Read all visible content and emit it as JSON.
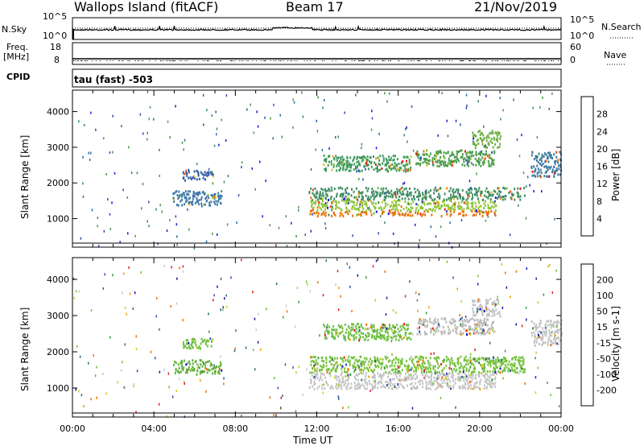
{
  "header": {
    "title": "Wallops Island (fitACF)",
    "beam": "Beam 17",
    "date": "21/Nov/2019"
  },
  "sky_panel": {
    "left_label": "N.Sky",
    "right_label": "N.Search",
    "left_ticks": [
      "10^5",
      "10^0"
    ],
    "right_ticks": [
      "10^5",
      "10^0"
    ]
  },
  "freq_panel": {
    "left_label_line1": "Freq.",
    "left_label_line2": "[MHz]",
    "right_label": "Nave",
    "left_ticks": [
      "18",
      "8"
    ],
    "right_ticks": [
      "60",
      "0"
    ]
  },
  "cpid_panel": {
    "label": "CPID",
    "text": "tau (fast) -503"
  },
  "chart_data": [
    {
      "type": "heatmap",
      "name_text": "power",
      "xlabel": "",
      "ylabel": "Slant Range [km]",
      "yticks": [
        1000,
        2000,
        3000,
        4000
      ],
      "ylim": [
        200,
        4600
      ],
      "xlim": [
        0,
        24
      ],
      "colorbar": {
        "label": "Power [dB]",
        "ticks": [
          4,
          8,
          12,
          16,
          20,
          24,
          28
        ],
        "range": [
          0,
          32
        ],
        "colors": [
          "#1a1adc",
          "#2e4fb0",
          "#2f6e9e",
          "#3c8a6e",
          "#4e9a48",
          "#6fbf3a",
          "#c8cc20",
          "#f0b000",
          "#f08a00",
          "#f06a00",
          "#ea4a00",
          "#e81818"
        ]
      },
      "regions": [
        {
          "t0": 4.9,
          "t1": 7.3,
          "r0": 1400,
          "r1": 1800,
          "color": "#3f79a8"
        },
        {
          "t0": 5.4,
          "t1": 6.9,
          "r0": 2100,
          "r1": 2400,
          "color": "#2e5aa6"
        },
        {
          "t0": 11.6,
          "t1": 20.8,
          "r0": 1100,
          "r1": 1250,
          "color": "#ea7000"
        },
        {
          "t0": 11.6,
          "t1": 20.8,
          "r0": 1250,
          "r1": 1550,
          "color": "#8fc43a"
        },
        {
          "t0": 11.6,
          "t1": 22.2,
          "r0": 1550,
          "r1": 1900,
          "color": "#3e8c62"
        },
        {
          "t0": 12.3,
          "t1": 16.6,
          "r0": 2350,
          "r1": 2800,
          "color": "#3f9a5a"
        },
        {
          "t0": 16.8,
          "t1": 20.7,
          "r0": 2500,
          "r1": 2950,
          "color": "#4e9e4a"
        },
        {
          "t0": 19.6,
          "t1": 21.0,
          "r0": 3000,
          "r1": 3500,
          "color": "#6bb040"
        },
        {
          "t0": 22.5,
          "t1": 24.0,
          "r0": 2200,
          "r1": 2900,
          "color": "#3c7aa0"
        }
      ]
    },
    {
      "type": "heatmap",
      "name_text": "velocity",
      "xlabel": "Time UT",
      "ylabel": "Slant Range [km]",
      "xticks": [
        "00:00",
        "04:00",
        "08:00",
        "12:00",
        "16:00",
        "20:00",
        "00:00"
      ],
      "yticks": [
        1000,
        2000,
        3000,
        4000
      ],
      "ylim": [
        200,
        4600
      ],
      "xlim": [
        0,
        24
      ],
      "colorbar": {
        "label": "Velocity [m s-1]",
        "ticks": [
          "200",
          "100",
          "50",
          "15",
          "-15",
          "-50",
          "-100",
          "-200"
        ],
        "colors": [
          "#1414a8",
          "#2f4fb0",
          "#2e6e6a",
          "#3f9a3f",
          "#72c43a",
          "#c8c8c8",
          "#c8cc20",
          "#f0a000",
          "#f07000",
          "#e81818"
        ]
      },
      "regions": [
        {
          "t0": 4.9,
          "t1": 7.3,
          "r0": 1400,
          "r1": 1800,
          "color": "#5fb23a"
        },
        {
          "t0": 5.4,
          "t1": 6.9,
          "r0": 2100,
          "r1": 2400,
          "color": "#6cbf3e"
        },
        {
          "t0": 11.6,
          "t1": 20.8,
          "r0": 1000,
          "r1": 1450,
          "color": "#c4c4c4"
        },
        {
          "t0": 11.6,
          "t1": 22.2,
          "r0": 1450,
          "r1": 1900,
          "color": "#74c23c"
        },
        {
          "t0": 12.3,
          "t1": 16.6,
          "r0": 2350,
          "r1": 2800,
          "color": "#6cc03e"
        },
        {
          "t0": 16.8,
          "t1": 20.7,
          "r0": 2500,
          "r1": 2950,
          "color": "#b8b8b8"
        },
        {
          "t0": 19.6,
          "t1": 21.0,
          "r0": 3000,
          "r1": 3500,
          "color": "#c0c0c0"
        },
        {
          "t0": 22.5,
          "t1": 24.0,
          "r0": 2200,
          "r1": 2900,
          "color": "#c2c2c2"
        }
      ]
    }
  ]
}
